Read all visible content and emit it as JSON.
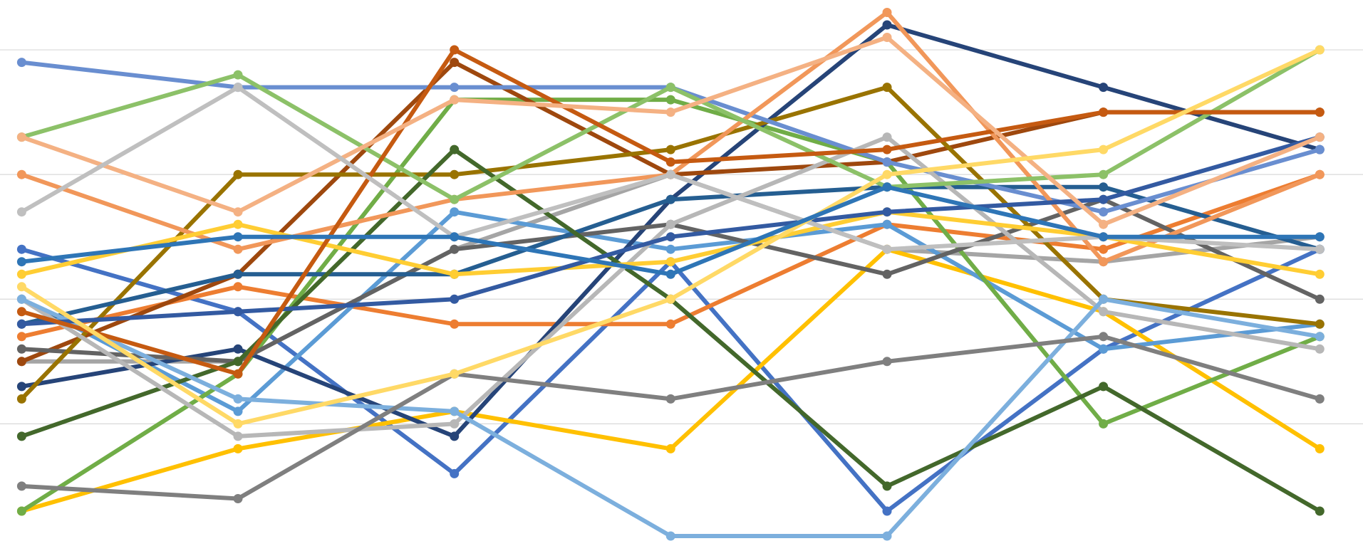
{
  "chart_data": {
    "type": "line",
    "title": "",
    "xlabel": "",
    "ylabel": "",
    "x": [
      1,
      2,
      3,
      4,
      5,
      6,
      7
    ],
    "xlim": [
      0.9,
      7.2
    ],
    "ylim": [
      -1.8,
      42
    ],
    "grid": true,
    "gridlines": [
      8,
      18,
      28,
      38
    ],
    "legend": "none",
    "series": [
      {
        "color": "#4472c4",
        "values": [
          22,
          17,
          4,
          21,
          1,
          14,
          22
        ]
      },
      {
        "color": "#ed7d31",
        "values": [
          15,
          19,
          16,
          16,
          24,
          22,
          28
        ]
      },
      {
        "color": "#a5a5a5",
        "values": [
          13,
          13,
          22,
          28,
          22,
          21,
          23
        ]
      },
      {
        "color": "#ffc000",
        "values": [
          1,
          6,
          9,
          6,
          22,
          17,
          6
        ]
      },
      {
        "color": "#5b9bd5",
        "values": [
          18,
          9,
          25,
          22,
          24,
          14,
          16
        ]
      },
      {
        "color": "#70ad47",
        "values": [
          1,
          12,
          34,
          34,
          29,
          8,
          15
        ]
      },
      {
        "color": "#264478",
        "values": [
          11,
          14,
          7,
          26,
          40,
          35,
          30
        ]
      },
      {
        "color": "#9e480e",
        "values": [
          13,
          20,
          37,
          28,
          29,
          33,
          33
        ]
      },
      {
        "color": "#636363",
        "values": [
          14,
          13,
          22,
          24,
          20,
          26,
          18
        ]
      },
      {
        "color": "#997300",
        "values": [
          10,
          28,
          28,
          30,
          35,
          18,
          16
        ]
      },
      {
        "color": "#255e91",
        "values": [
          16,
          20,
          20,
          26,
          27,
          27,
          22
        ]
      },
      {
        "color": "#43682b",
        "values": [
          7,
          13,
          30,
          18,
          3,
          11,
          1
        ]
      },
      {
        "color": "#698ed0",
        "values": [
          37,
          35,
          35,
          35,
          29,
          25,
          30
        ]
      },
      {
        "color": "#f1975a",
        "values": [
          28,
          22,
          26,
          28,
          41,
          21,
          28
        ]
      },
      {
        "color": "#b7b7b7",
        "values": [
          18,
          7,
          8,
          24,
          31,
          17,
          14
        ]
      },
      {
        "color": "#ffcd33",
        "values": [
          20,
          24,
          20,
          21,
          25,
          23,
          20
        ]
      },
      {
        "color": "#7cafdd",
        "values": [
          18,
          10,
          9,
          -1,
          -1,
          18,
          15
        ]
      },
      {
        "color": "#8cc168",
        "values": [
          31,
          36,
          26,
          35,
          27,
          28,
          38
        ]
      },
      {
        "color": "#335aa1",
        "values": [
          16,
          17,
          18,
          23,
          25,
          26,
          31
        ]
      },
      {
        "color": "#c55a11",
        "values": [
          17,
          12,
          38,
          29,
          30,
          33,
          33
        ]
      },
      {
        "color": "#7f7f7f",
        "values": [
          3,
          2,
          12,
          10,
          13,
          15,
          10
        ]
      },
      {
        "color": "#f4b183",
        "values": [
          31,
          25,
          34,
          33,
          39,
          24,
          31
        ]
      },
      {
        "color": "#bfbfbf",
        "values": [
          25,
          35,
          23,
          28,
          22,
          23,
          22
        ]
      },
      {
        "color": "#ffd966",
        "values": [
          19,
          8,
          12,
          18,
          28,
          30,
          38
        ]
      },
      {
        "color": "#2e75b6",
        "values": [
          21,
          23,
          23,
          20,
          27,
          23,
          23
        ]
      }
    ]
  }
}
